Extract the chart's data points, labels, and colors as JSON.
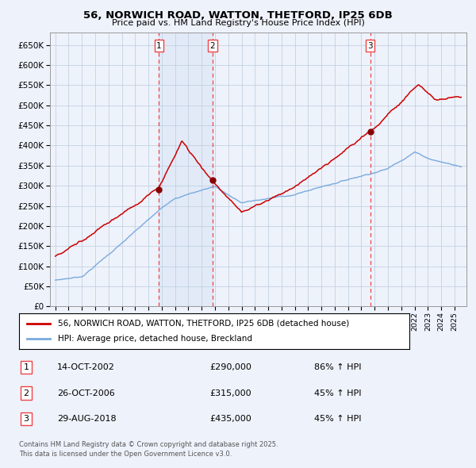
{
  "title": "56, NORWICH ROAD, WATTON, THETFORD, IP25 6DB",
  "subtitle": "Price paid vs. HM Land Registry's House Price Index (HPI)",
  "legend_line1": "56, NORWICH ROAD, WATTON, THETFORD, IP25 6DB (detached house)",
  "legend_line2": "HPI: Average price, detached house, Breckland",
  "footer_line1": "Contains HM Land Registry data © Crown copyright and database right 2025.",
  "footer_line2": "This data is licensed under the Open Government Licence v3.0.",
  "transactions": [
    {
      "num": 1,
      "date": "14-OCT-2002",
      "price": "£290,000",
      "pct": "86% ↑ HPI",
      "year_x": 2002.79
    },
    {
      "num": 2,
      "date": "26-OCT-2006",
      "price": "£315,000",
      "pct": "45% ↑ HPI",
      "year_x": 2006.82
    },
    {
      "num": 3,
      "date": "29-AUG-2018",
      "price": "£435,000",
      "pct": "45% ↑ HPI",
      "year_x": 2018.66
    }
  ],
  "hpi_color": "#7aaadd",
  "price_color": "#cc0000",
  "vline_color": "#ee4444",
  "shade_color": "#ccddf5",
  "grid_color": "#bbccdd",
  "bg_color": "#eef2fb",
  "plot_bg": "#eef2fb",
  "ylim": [
    0,
    680000
  ],
  "yticks": [
    0,
    50000,
    100000,
    150000,
    200000,
    250000,
    300000,
    350000,
    400000,
    450000,
    500000,
    550000,
    600000,
    650000
  ],
  "xlim_start": 1994.6,
  "xlim_end": 2025.9
}
